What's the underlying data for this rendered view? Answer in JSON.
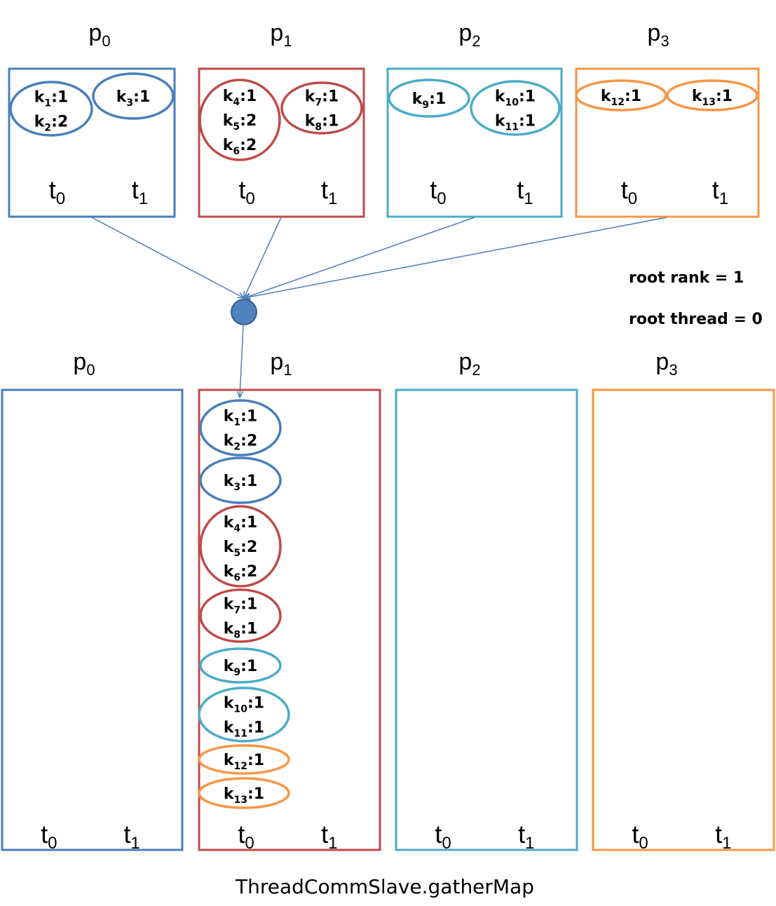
{
  "colors": {
    "p0": "#4a7ebb",
    "p1": "#be4b48",
    "p2": "#4bacc6",
    "p3": "#f79646",
    "arrow": "#4a7ebb",
    "node_fill": "#4f81bd",
    "node_stroke": "#385d8a"
  },
  "top": {
    "processes": [
      {
        "base": "p",
        "sub": "0"
      },
      {
        "base": "p",
        "sub": "1"
      },
      {
        "base": "p",
        "sub": "2"
      },
      {
        "base": "p",
        "sub": "3"
      }
    ],
    "threads": [
      {
        "base": "t",
        "sub": "0"
      },
      {
        "base": "t",
        "sub": "1"
      }
    ],
    "groups": [
      {
        "proc": 0,
        "thread": 0,
        "entries": [
          {
            "k": "1",
            "v": "1"
          },
          {
            "k": "2",
            "v": "2"
          }
        ]
      },
      {
        "proc": 0,
        "thread": 1,
        "entries": [
          {
            "k": "3",
            "v": "1"
          }
        ]
      },
      {
        "proc": 1,
        "thread": 0,
        "entries": [
          {
            "k": "4",
            "v": "1"
          },
          {
            "k": "5",
            "v": "2"
          },
          {
            "k": "6",
            "v": "2"
          }
        ]
      },
      {
        "proc": 1,
        "thread": 1,
        "entries": [
          {
            "k": "7",
            "v": "1"
          },
          {
            "k": "8",
            "v": "1"
          }
        ]
      },
      {
        "proc": 2,
        "thread": 0,
        "entries": [
          {
            "k": "9",
            "v": "1"
          }
        ]
      },
      {
        "proc": 2,
        "thread": 1,
        "entries": [
          {
            "k": "10",
            "v": "1"
          },
          {
            "k": "11",
            "v": "1"
          }
        ]
      },
      {
        "proc": 3,
        "thread": 0,
        "entries": [
          {
            "k": "12",
            "v": "1"
          }
        ]
      },
      {
        "proc": 3,
        "thread": 1,
        "entries": [
          {
            "k": "13",
            "v": "1"
          }
        ]
      }
    ]
  },
  "notes": {
    "root_rank": "root rank = 1",
    "root_thread": "root thread = 0"
  },
  "bottom": {
    "processes": [
      {
        "base": "p",
        "sub": "0"
      },
      {
        "base": "p",
        "sub": "1"
      },
      {
        "base": "p",
        "sub": "2"
      },
      {
        "base": "p",
        "sub": "3"
      }
    ],
    "threads": [
      {
        "base": "t",
        "sub": "0"
      },
      {
        "base": "t",
        "sub": "1"
      }
    ],
    "gathered": [
      {
        "color": "p0",
        "entries": [
          {
            "k": "1",
            "v": "1"
          },
          {
            "k": "2",
            "v": "2"
          }
        ]
      },
      {
        "color": "p0",
        "entries": [
          {
            "k": "3",
            "v": "1"
          }
        ]
      },
      {
        "color": "p1",
        "entries": [
          {
            "k": "4",
            "v": "1"
          },
          {
            "k": "5",
            "v": "2"
          },
          {
            "k": "6",
            "v": "2"
          }
        ]
      },
      {
        "color": "p1",
        "entries": [
          {
            "k": "7",
            "v": "1"
          },
          {
            "k": "8",
            "v": "1"
          }
        ]
      },
      {
        "color": "p2",
        "entries": [
          {
            "k": "9",
            "v": "1"
          }
        ]
      },
      {
        "color": "p2",
        "entries": [
          {
            "k": "10",
            "v": "1"
          },
          {
            "k": "11",
            "v": "1"
          }
        ]
      },
      {
        "color": "p3",
        "entries": [
          {
            "k": "12",
            "v": "1"
          }
        ]
      },
      {
        "color": "p3",
        "entries": [
          {
            "k": "13",
            "v": "1"
          }
        ]
      }
    ]
  },
  "caption": "ThreadCommSlave.gatherMap"
}
